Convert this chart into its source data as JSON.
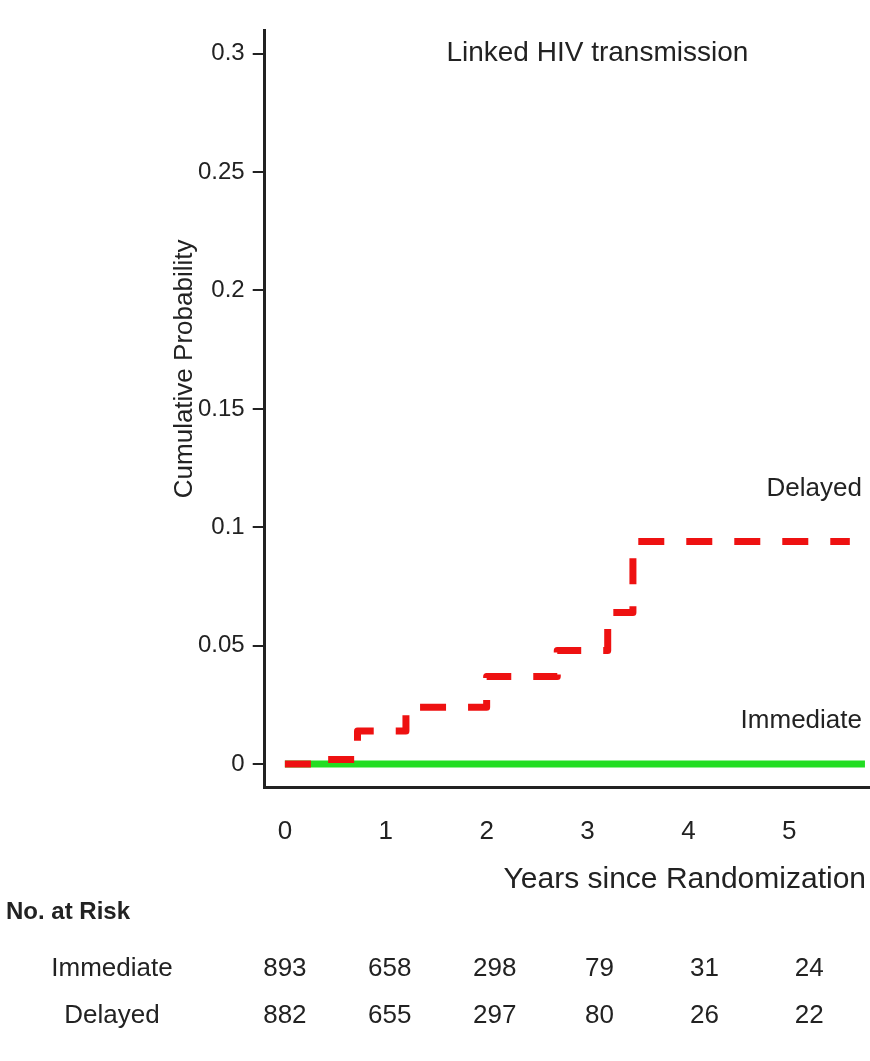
{
  "chart_data": {
    "type": "step",
    "title": "Linked HIV transmission",
    "xlabel": "Years since Randomization",
    "ylabel": "Cumulative Probability",
    "xlim": [
      -0.2,
      5.8
    ],
    "xticks": [
      0,
      1,
      2,
      3,
      4,
      5
    ],
    "ylim": [
      -0.01,
      0.31
    ],
    "yticks": [
      0,
      0.05,
      0.1,
      0.15,
      0.2,
      0.25,
      0.3
    ],
    "grid": false,
    "legend": false,
    "marker": "none",
    "series": [
      {
        "name": "Delayed",
        "color": "#ee1111",
        "line_style": "dashed",
        "x": [
          0,
          0.32,
          0.72,
          1.2,
          2.0,
          2.7,
          3.2,
          3.45,
          5.6
        ],
        "values": [
          0,
          0.002,
          0.014,
          0.024,
          0.037,
          0.048,
          0.064,
          0.094,
          0.094
        ]
      },
      {
        "name": "Immediate",
        "color": "#22dd22",
        "line_style": "solid",
        "x": [
          0,
          5.75
        ],
        "values": [
          0,
          0
        ]
      }
    ],
    "annotations": [
      "No. at Risk",
      "Immediate 893 658 298 79 31 24",
      "Delayed 882 655 297 80 26 22"
    ]
  }
}
